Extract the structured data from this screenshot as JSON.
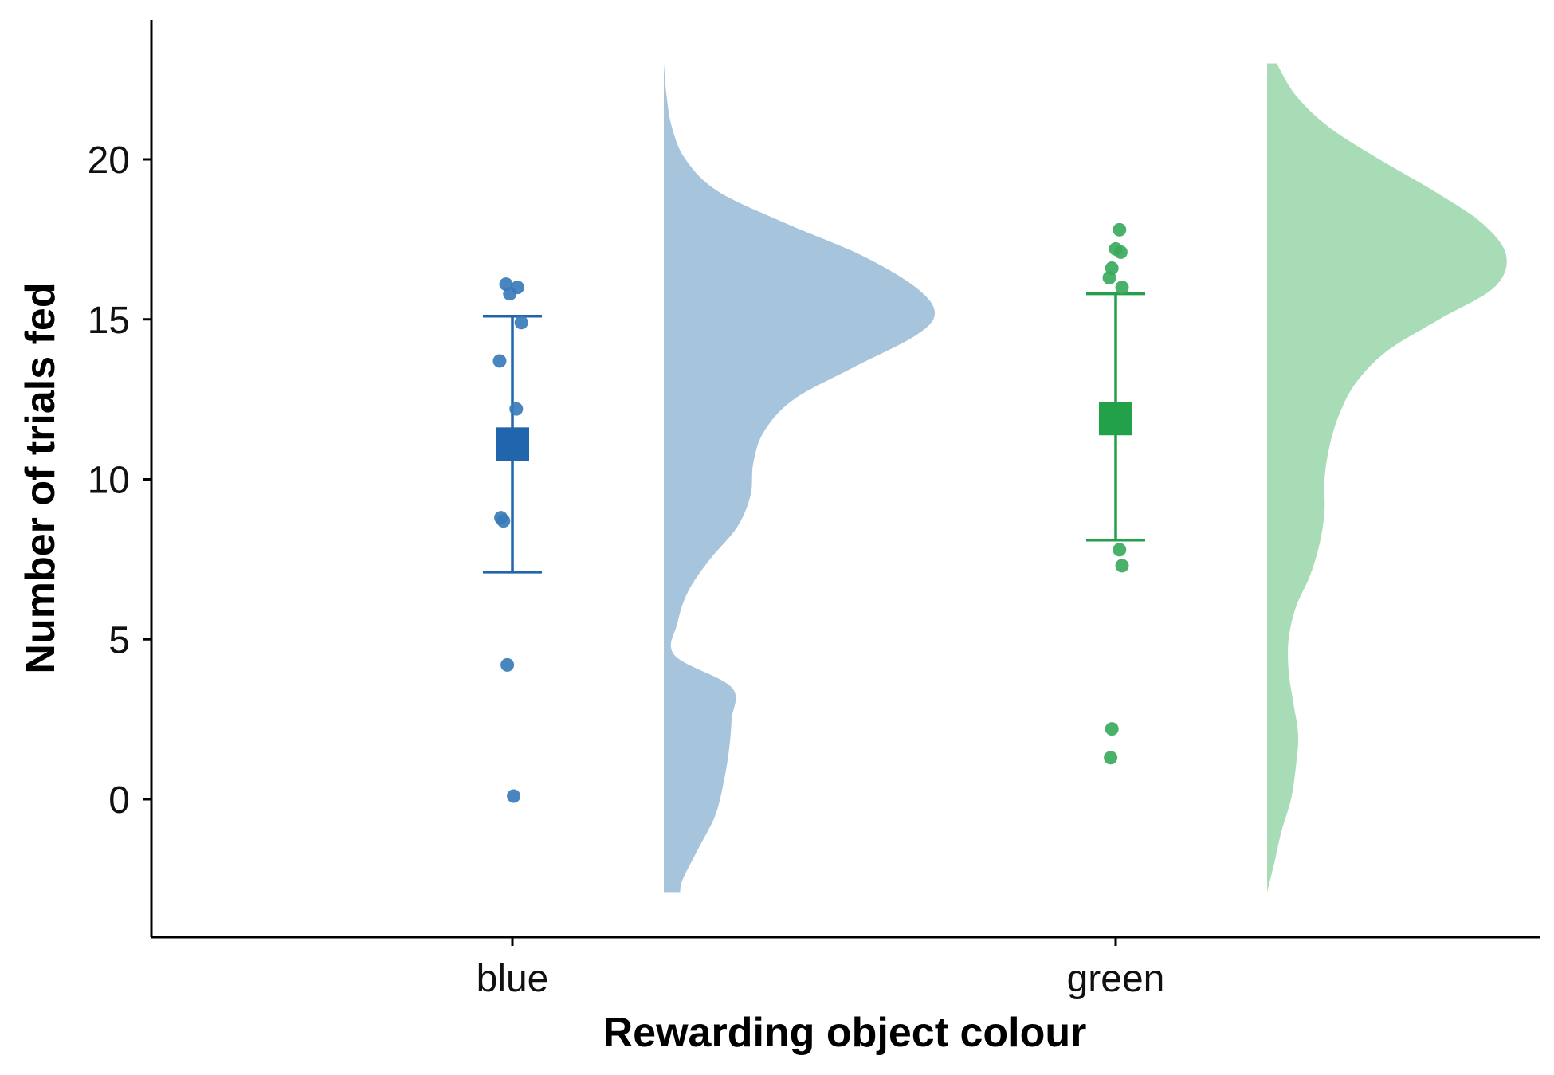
{
  "chart_data": {
    "type": "raincloud",
    "title": "",
    "xlabel": "Rewarding object colour",
    "ylabel": "Number of trials fed",
    "categories": [
      "blue",
      "green"
    ],
    "ylim": [
      -4.3,
      24.3
    ],
    "yticks": [
      0,
      5,
      10,
      15,
      20
    ],
    "grid": false,
    "series": [
      {
        "category": "blue",
        "point_color": "#3a7bb8",
        "mean_color": "#2166ac",
        "cloud_color": "#a7c4dd",
        "mean": 11.1,
        "error_low": 7.1,
        "error_high": 15.1,
        "points": [
          {
            "dx": -0.05,
            "y": 16.1
          },
          {
            "dx": -0.02,
            "y": 15.8
          },
          {
            "dx": 0.04,
            "y": 16.0
          },
          {
            "dx": 0.07,
            "y": 14.9
          },
          {
            "dx": -0.1,
            "y": 13.7
          },
          {
            "dx": 0.03,
            "y": 12.2
          },
          {
            "dx": -0.09,
            "y": 8.8
          },
          {
            "dx": -0.07,
            "y": 8.7
          },
          {
            "dx": -0.04,
            "y": 4.2
          },
          {
            "dx": 0.01,
            "y": 0.1
          }
        ],
        "density": [
          {
            "y": 23.0,
            "w": 0.0
          },
          {
            "y": 22.0,
            "w": 0.01
          },
          {
            "y": 21.0,
            "w": 0.03
          },
          {
            "y": 20.0,
            "w": 0.08
          },
          {
            "y": 19.0,
            "w": 0.2
          },
          {
            "y": 18.0,
            "w": 0.45
          },
          {
            "y": 17.0,
            "w": 0.73
          },
          {
            "y": 16.0,
            "w": 0.93
          },
          {
            "y": 15.2,
            "w": 1.0
          },
          {
            "y": 14.5,
            "w": 0.93
          },
          {
            "y": 13.5,
            "w": 0.7
          },
          {
            "y": 12.5,
            "w": 0.48
          },
          {
            "y": 11.5,
            "w": 0.37
          },
          {
            "y": 10.5,
            "w": 0.33
          },
          {
            "y": 9.5,
            "w": 0.32
          },
          {
            "y": 8.5,
            "w": 0.27
          },
          {
            "y": 7.5,
            "w": 0.17
          },
          {
            "y": 6.5,
            "w": 0.09
          },
          {
            "y": 5.5,
            "w": 0.05
          },
          {
            "y": 4.5,
            "w": 0.04
          },
          {
            "y": 3.5,
            "w": 0.25
          },
          {
            "y": 2.5,
            "w": 0.25
          },
          {
            "y": 1.5,
            "w": 0.24
          },
          {
            "y": 0.5,
            "w": 0.22
          },
          {
            "y": -0.5,
            "w": 0.19
          },
          {
            "y": -1.5,
            "w": 0.13
          },
          {
            "y": -2.5,
            "w": 0.07
          },
          {
            "y": -2.9,
            "w": 0.06
          }
        ]
      },
      {
        "category": "green",
        "point_color": "#3aaa5c",
        "mean_color": "#23a04a",
        "cloud_color": "#a8dcb7",
        "mean": 11.9,
        "error_low": 8.1,
        "error_high": 15.8,
        "points": [
          {
            "dx": 0.03,
            "y": 17.8
          },
          {
            "dx": -0.0,
            "y": 17.2
          },
          {
            "dx": 0.04,
            "y": 17.1
          },
          {
            "dx": -0.03,
            "y": 16.6
          },
          {
            "dx": -0.05,
            "y": 16.3
          },
          {
            "dx": 0.05,
            "y": 16.0
          },
          {
            "dx": 0.03,
            "y": 12.1
          },
          {
            "dx": 0.03,
            "y": 7.8
          },
          {
            "dx": 0.05,
            "y": 7.3
          },
          {
            "dx": -0.03,
            "y": 2.2
          },
          {
            "dx": -0.04,
            "y": 1.3
          }
        ],
        "density": [
          {
            "y": 23.0,
            "w": 0.04
          },
          {
            "y": 22.0,
            "w": 0.12
          },
          {
            "y": 21.0,
            "w": 0.26
          },
          {
            "y": 20.0,
            "w": 0.47
          },
          {
            "y": 19.0,
            "w": 0.7
          },
          {
            "y": 18.0,
            "w": 0.9
          },
          {
            "y": 17.0,
            "w": 1.0
          },
          {
            "y": 16.0,
            "w": 0.95
          },
          {
            "y": 15.0,
            "w": 0.72
          },
          {
            "y": 14.0,
            "w": 0.5
          },
          {
            "y": 13.0,
            "w": 0.37
          },
          {
            "y": 12.0,
            "w": 0.3
          },
          {
            "y": 11.0,
            "w": 0.26
          },
          {
            "y": 10.0,
            "w": 0.24
          },
          {
            "y": 9.0,
            "w": 0.24
          },
          {
            "y": 8.0,
            "w": 0.22
          },
          {
            "y": 7.0,
            "w": 0.18
          },
          {
            "y": 6.0,
            "w": 0.12
          },
          {
            "y": 5.0,
            "w": 0.09
          },
          {
            "y": 4.0,
            "w": 0.09
          },
          {
            "y": 3.0,
            "w": 0.11
          },
          {
            "y": 2.0,
            "w": 0.13
          },
          {
            "y": 1.0,
            "w": 0.12
          },
          {
            "y": 0.0,
            "w": 0.1
          },
          {
            "y": -1.0,
            "w": 0.06
          },
          {
            "y": -2.0,
            "w": 0.03
          },
          {
            "y": -2.9,
            "w": 0.0
          }
        ]
      }
    ]
  }
}
